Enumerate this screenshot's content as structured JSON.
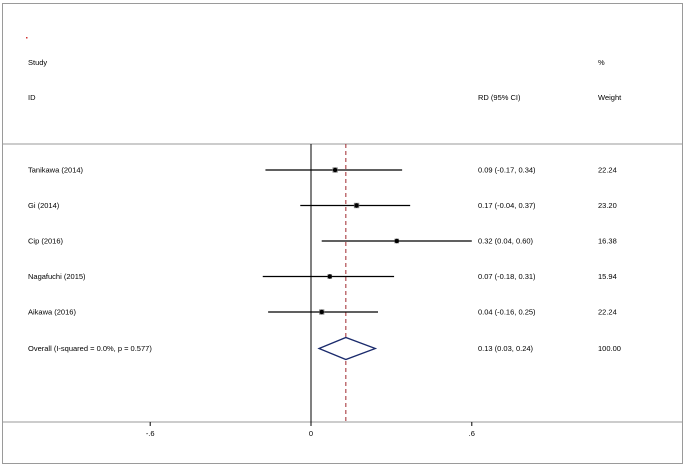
{
  "header": {
    "study_label": "Study",
    "id_label": "ID",
    "percent_label": "%",
    "rd_label": "RD (95% CI)",
    "weight_label": "Weight"
  },
  "chart_data": {
    "type": "forest",
    "measure": "RD (95% CI)",
    "xlim": [
      -1.0,
      1.32
    ],
    "x_ticks": [
      -0.6,
      0,
      0.6
    ],
    "x_tick_labels": [
      "-.6",
      "0",
      ".6"
    ],
    "null_line": 0,
    "pooled_line": 0.13,
    "studies": [
      {
        "id": "Tanikawa  (2014)",
        "estimate": 0.09,
        "lower": -0.17,
        "upper": 0.34,
        "ci_text": "0.09 (-0.17, 0.34)",
        "weight": "22.24"
      },
      {
        "id": "Gi (2014)",
        "estimate": 0.17,
        "lower": -0.04,
        "upper": 0.37,
        "ci_text": "0.17 (-0.04, 0.37)",
        "weight": "23.20"
      },
      {
        "id": "Cip  (2016)",
        "estimate": 0.32,
        "lower": 0.04,
        "upper": 0.6,
        "ci_text": "0.32 (0.04, 0.60)",
        "weight": "16.38"
      },
      {
        "id": "Nagafuchi  (2015)",
        "estimate": 0.07,
        "lower": -0.18,
        "upper": 0.31,
        "ci_text": "0.07 (-0.18, 0.31)",
        "weight": "15.94"
      },
      {
        "id": "Aikawa (2016)",
        "estimate": 0.04,
        "lower": -0.16,
        "upper": 0.25,
        "ci_text": "0.04 (-0.16, 0.25)",
        "weight": "22.24"
      }
    ],
    "overall": {
      "id": "Overall  (I-squared = 0.0%, p = 0.577)",
      "estimate": 0.13,
      "lower": 0.03,
      "upper": 0.24,
      "ci_text": "0.13 (0.03, 0.24)",
      "weight": "100.00"
    },
    "colors": {
      "line": "#000000",
      "pooled_line": "#a0282d",
      "diamond": "#1a2a6c",
      "frame": "#9a9a9a",
      "marker_box": "#7f7f7f"
    }
  }
}
